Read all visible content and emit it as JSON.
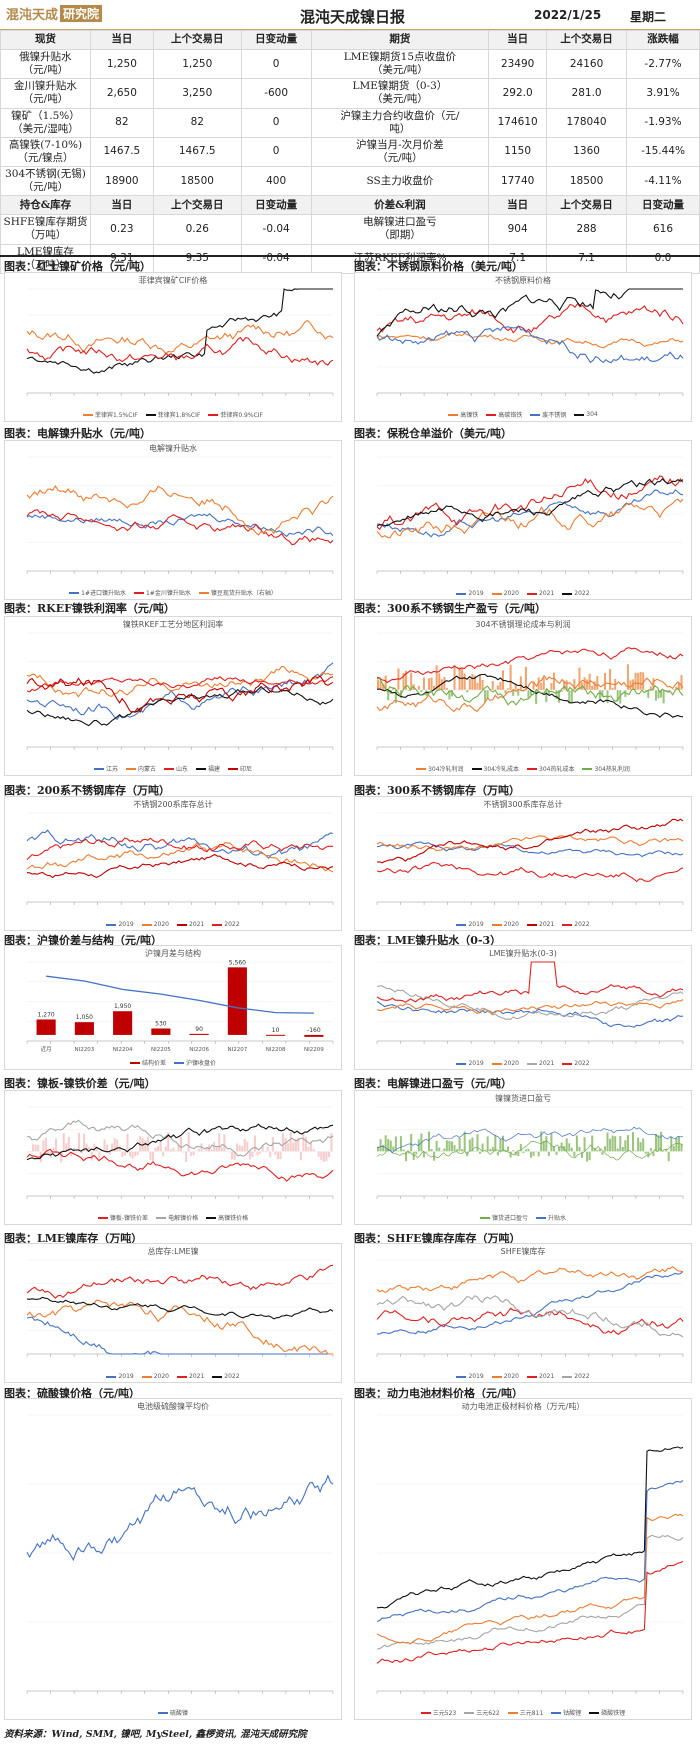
{
  "header": {
    "logo_text": "混沌天成",
    "logo_box": "研究院",
    "title": "混沌天成镍日报",
    "date": "2022/1/25",
    "weekday": "星期二"
  },
  "table1": {
    "headers": [
      "现货",
      "当日",
      "上个交易日",
      "日变动量",
      "期货",
      "当日",
      "上个交易日",
      "涨跌幅"
    ],
    "rows": [
      [
        "俄镍升贴水\n（元/吨）",
        "1,250",
        "1,250",
        "0",
        "LME镍期货15点收盘价\n（美元/吨）",
        "23490",
        "24160",
        "-2.77%"
      ],
      [
        "金川镍升贴水\n（元/吨）",
        "2,650",
        "3,250",
        "-600",
        "LME镍期货（0-3）\n（美元/吨）",
        "292.0",
        "281.0",
        "3.91%"
      ],
      [
        "镍矿（1.5%）\n（美元/湿吨）",
        "82",
        "82",
        "0",
        "沪镍主力合约收盘价（元/\n吨）",
        "174610",
        "178040",
        "-1.93%"
      ],
      [
        "高镍铁(7-10%)\n（元/镍点）",
        "1467.5",
        "1467.5",
        "0",
        "沪镍当月-次月价差\n（元/吨）",
        "1150",
        "1360",
        "-15.44%"
      ],
      [
        "304不锈钢(无锡)\n（元/吨）",
        "18900",
        "18500",
        "400",
        "SS主力收盘价",
        "17740",
        "18500",
        "-4.11%"
      ]
    ]
  },
  "table2": {
    "headers": [
      "持仓&库存",
      "当日",
      "上个交易日",
      "日变动量",
      "价差&利润",
      "当日",
      "上个交易日",
      "日变动量"
    ],
    "rows": [
      [
        "SHFE镍库存期货\n（万吨）",
        "0.23",
        "0.26",
        "-0.04",
        "电解镍进口盈亏\n（即期）",
        "904",
        "288",
        "616"
      ],
      [
        "LME镍库存\n（万吨）",
        "9.31",
        "9.35",
        "-0.04",
        "江苏RKEF利润率%",
        "7.1",
        "7.1",
        "0.0"
      ]
    ]
  },
  "captions": [
    "图表：红土镍矿价格（元/吨）",
    "图表：不锈钢原料价格（美元/吨）",
    "图表：电解镍升贴水（元/吨）",
    "图表：保税仓单溢价（美元/吨）",
    "图表：RKEF镍铁利润率（元/吨）",
    "图表：300系不锈钢生产盈亏（元/吨）",
    "图表：200系不锈钢库存（万吨）",
    "图表：300系不锈钢库存（万吨）",
    "图表：沪镍价差与结构（元/吨）",
    "图表：LME镍升贴水（0-3）",
    "图表：镍板-镍铁价差（元/吨）",
    "图表：电解镍进口盈亏（元/吨）",
    "图表：LME镍库存（万吨）",
    "图表：SHFE镍库存库存（万吨）",
    "图表：硫酸镍价格（元/吨）",
    "图表：动力电池材料价格（元/吨）"
  ],
  "chart_titles": [
    "菲律宾镍矿CIF价格",
    "不锈钢原料价格",
    "电解镍升贴水",
    "",
    "镍铁RKEF工艺分地区利润率",
    "304不锈钢理论成本与利润",
    "不锈钢200系库存总计",
    "不锈钢300系库存总计",
    "沪镍月差与结构",
    "LME镍升贴水(0-3)",
    "",
    "镍镍货进口盈亏",
    "总库存:LME镍",
    "SHFE镍库存",
    "电池级硫酸镍平均价",
    "动力电池正极材料价格（万元/吨）"
  ],
  "legends": [
    [
      "菲律宾1.5%CIF",
      "菲律宾1.8%CIF",
      "菲律宾0.9%CIF"
    ],
    [
      "高镍铁",
      "高碳铬铁",
      "废不锈钢",
      "304"
    ],
    [
      "1#进口镍升贴水",
      "1#金川镍升贴水",
      "镍豆现货升贴水（右轴）"
    ],
    [
      "2019",
      "2020",
      "2021",
      "2022"
    ],
    [
      "江苏",
      "内蒙古",
      "山东",
      "福建",
      "印尼"
    ],
    [
      "304冷轧利润",
      "304冷轧成本",
      "304热轧成本",
      "304热轧利润"
    ],
    [
      "2019",
      "2020",
      "2021",
      "2022"
    ],
    [
      "2019",
      "2020",
      "2021",
      "2022"
    ],
    [
      "结构价差",
      "沪镍收盘价"
    ],
    [
      "2019",
      "2020",
      "2021",
      "2022"
    ],
    [
      "镍板-镍铁价差",
      "电解镍价格",
      "高镍铁价格"
    ],
    [
      "镍货进口盈亏",
      "升贴水"
    ],
    [
      "2019",
      "2020",
      "2021",
      "2022"
    ],
    [
      "2019",
      "2020",
      "2021",
      "2022"
    ],
    [
      "硫酸镍"
    ],
    [
      "三元523",
      "三元622",
      "三元811",
      "钴酸锂",
      "磷酸铁锂"
    ]
  ],
  "colors": {
    "accent": "#b48a4a",
    "red": "#e02020",
    "black": "#111111",
    "orange": "#ed7d31",
    "blue": "#4472c4",
    "green": "#70ad47",
    "gray": "#a5a5a5",
    "dark_red": "#c00000"
  },
  "spread_chart": {
    "bar_labels": [
      "1,270",
      "1,050",
      "1,950",
      "530",
      "90",
      "5,560",
      "10",
      "-160"
    ],
    "x_labels": [
      "近月",
      "NI2203",
      "NI2204",
      "NI2205",
      "NI2206",
      "NI2207",
      "NI2208",
      "NI2209"
    ],
    "structure_values": [
      1270,
      1050,
      1950,
      530,
      90,
      5560,
      10,
      -160
    ],
    "close_values": [
      177300,
      176400,
      174800,
      173900,
      172700,
      171300,
      170400,
      170300
    ]
  },
  "footer": "资料来源：Wind, SMM, 镍吧, MySteel, 鑫椤资讯, 混沌天成研究院"
}
